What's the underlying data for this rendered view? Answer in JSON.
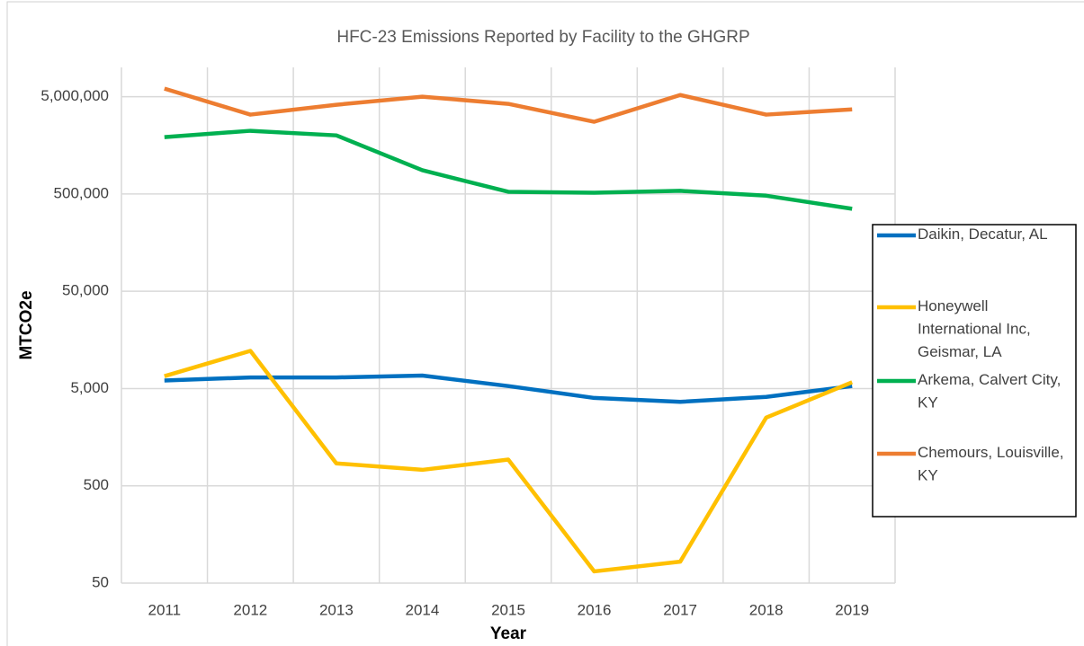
{
  "chart_data": {
    "type": "line",
    "title": "HFC-23 Emissions Reported by Facility to the GHGRP",
    "x_label": "Year",
    "y_label": "MTCO2e",
    "categories": [
      "2011",
      "2012",
      "2013",
      "2014",
      "2015",
      "2016",
      "2017",
      "2018",
      "2019"
    ],
    "series": [
      {
        "name": "Daikin, Decatur, AL",
        "color": "#0070c0",
        "values": [
          6050,
          6500,
          6500,
          6800,
          5300,
          4000,
          3650,
          4100,
          5300
        ]
      },
      {
        "name": "Honeywell International Inc, Geismar, LA",
        "color": "#ffc000",
        "values": [
          6700,
          12200,
          850,
          730,
          930,
          66,
          83,
          2510,
          5800
        ]
      },
      {
        "name": "Arkema, Calvert City, KY",
        "color": "#00b050",
        "values": [
          1920000,
          2230000,
          2000000,
          877000,
          526000,
          515000,
          538000,
          480000,
          352000
        ]
      },
      {
        "name": "Chemours, Louisville, KY",
        "color": "#ed7d31",
        "values": [
          6050000,
          3270000,
          4130000,
          5000000,
          4220000,
          2760000,
          5200000,
          3270000,
          3700000
        ]
      }
    ],
    "ylim": [
      50,
      10000000
    ],
    "yticks": [
      50,
      500,
      {
        "value": 5000,
        "label": "5,000"
      },
      {
        "value": 50000,
        "label": "50,000"
      },
      {
        "value": 500000,
        "label": "500,000"
      },
      {
        "value": 5000000,
        "label": "5,000,000"
      }
    ],
    "log_scale": true,
    "grid": true,
    "legend": "right"
  }
}
